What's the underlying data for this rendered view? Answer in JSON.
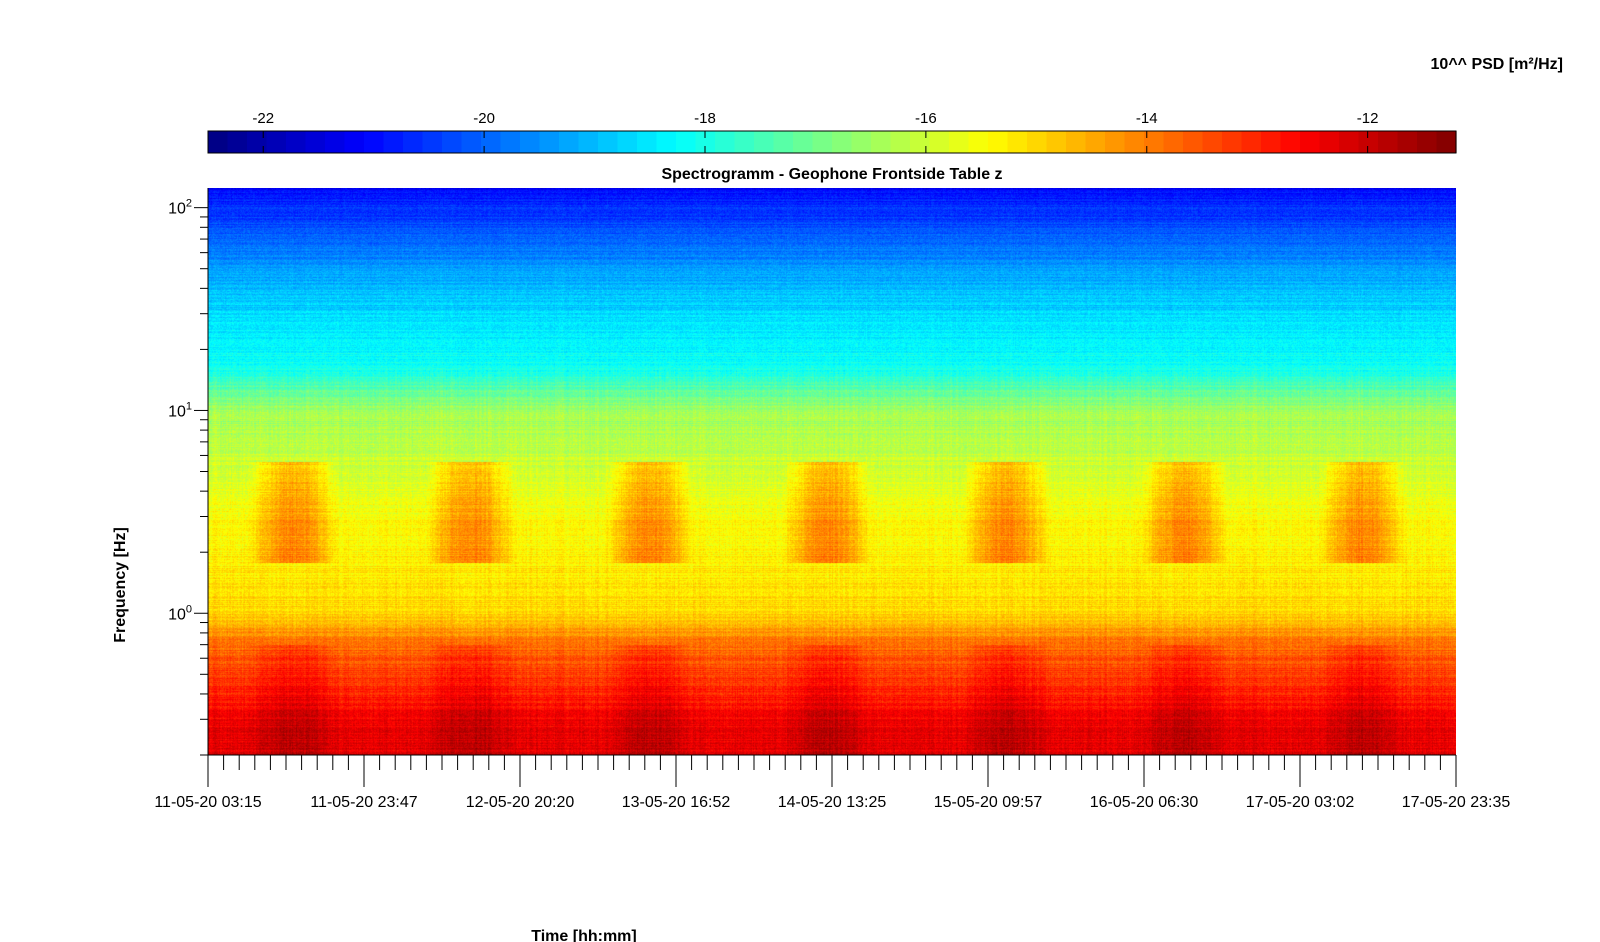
{
  "chart_data": {
    "type": "heatmap",
    "title": "Spectrogramm - Geophone Frontside Table z",
    "xlabel": "Time [hh:mm]",
    "ylabel": "Frequency [Hz]",
    "colorbar": {
      "label": "10^^ PSD [m²/Hz]",
      "range": [
        -22.5,
        -11.2
      ],
      "ticks": [
        "-22",
        "-20",
        "-18",
        "-16",
        "-14",
        "-12"
      ],
      "tick_values": [
        -22,
        -20,
        -18,
        -16,
        -14,
        -12
      ],
      "colormap": "jet",
      "placement": "top"
    },
    "x_ticks": [
      "11-05-20 03:15",
      "11-05-20 23:47",
      "12-05-20 20:20",
      "13-05-20 16:52",
      "14-05-20 13:25",
      "15-05-20 09:57",
      "16-05-20 06:30",
      "17-05-20 03:02",
      "17-05-20 23:35"
    ],
    "y_scale": "log",
    "y_range_hz": [
      0.2,
      125
    ],
    "y_ticks": [
      {
        "base": "10",
        "exp": "2",
        "value": 100
      },
      {
        "base": "10",
        "exp": "1",
        "value": 10
      },
      {
        "base": "10",
        "exp": "0",
        "value": 1
      }
    ],
    "psd_profile_by_frequency": [
      {
        "f": 125,
        "log_psd": -21.0
      },
      {
        "f": 70,
        "log_psd": -20.0
      },
      {
        "f": 40,
        "log_psd": -19.0
      },
      {
        "f": 16,
        "log_psd": -18.0
      },
      {
        "f": 10,
        "log_psd": -16.5
      },
      {
        "f": 3,
        "log_psd": -15.5
      },
      {
        "f": 1,
        "log_psd": -15.0
      },
      {
        "f": 0.7,
        "log_psd": -13.8
      },
      {
        "f": 0.3,
        "log_psd": -12.5
      },
      {
        "f": 0.2,
        "log_psd": -12.3
      }
    ],
    "daytime_activity_hz": [
      2,
      5
    ],
    "grid": false
  }
}
